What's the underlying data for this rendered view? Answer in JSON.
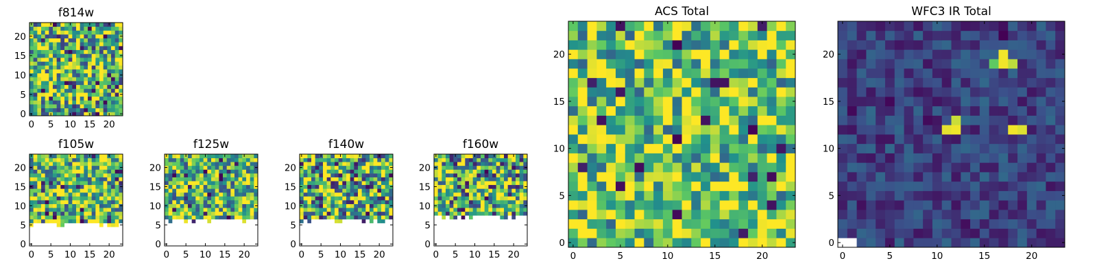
{
  "colors": {
    "colormap": "viridis",
    "viridis_stops": [
      "#440154",
      "#3b528b",
      "#21918c",
      "#5ec962",
      "#fde725"
    ],
    "masked": "#ffffff",
    "frame": "#000000"
  },
  "chart_data": [
    {
      "type": "heatmap",
      "title": "f814w",
      "grid_size": 24,
      "xlim": [
        -0.5,
        23.5
      ],
      "ylim": [
        -0.5,
        23.5
      ],
      "xticks": [
        0,
        5,
        10,
        15,
        20
      ],
      "yticks": [
        0,
        5,
        10,
        15,
        20
      ],
      "xtick_labels": [
        "0",
        "5",
        "10",
        "15",
        "20"
      ],
      "ytick_labels": [
        "0",
        "5",
        "10",
        "15",
        "20"
      ],
      "colormap": "viridis",
      "value_range": [
        0,
        1
      ],
      "mean_value": 0.66,
      "variation": 0.5,
      "seed": 11,
      "masked_below_row": null,
      "bright_spots": []
    },
    {
      "type": "heatmap",
      "title": "f105w",
      "grid_size": 24,
      "xlim": [
        -0.5,
        23.5
      ],
      "ylim": [
        -0.5,
        23.5
      ],
      "xticks": [
        0,
        5,
        10,
        15,
        20
      ],
      "yticks": [
        0,
        5,
        10,
        15,
        20
      ],
      "xtick_labels": [
        "0",
        "5",
        "10",
        "15",
        "20"
      ],
      "ytick_labels": [
        "0",
        "5",
        "10",
        "15",
        "20"
      ],
      "colormap": "viridis",
      "value_range": [
        0,
        1
      ],
      "mean_value": 0.7,
      "variation": 0.5,
      "seed": 21,
      "masked_below_row": 6,
      "bright_spots": []
    },
    {
      "type": "heatmap",
      "title": "f125w",
      "grid_size": 24,
      "xlim": [
        -0.5,
        23.5
      ],
      "ylim": [
        -0.5,
        23.5
      ],
      "xticks": [
        0,
        5,
        10,
        15,
        20
      ],
      "yticks": [
        0,
        5,
        10,
        15,
        20
      ],
      "xtick_labels": [
        "0",
        "5",
        "10",
        "15",
        "20"
      ],
      "ytick_labels": [
        "0",
        "5",
        "10",
        "15",
        "20"
      ],
      "colormap": "viridis",
      "value_range": [
        0,
        1
      ],
      "mean_value": 0.68,
      "variation": 0.45,
      "seed": 31,
      "masked_below_row": 7,
      "bright_spots": []
    },
    {
      "type": "heatmap",
      "title": "f140w",
      "grid_size": 24,
      "xlim": [
        -0.5,
        23.5
      ],
      "ylim": [
        -0.5,
        23.5
      ],
      "xticks": [
        0,
        5,
        10,
        15,
        20
      ],
      "yticks": [
        0,
        5,
        10,
        15,
        20
      ],
      "xtick_labels": [
        "0",
        "5",
        "10",
        "15",
        "20"
      ],
      "ytick_labels": [
        "0",
        "5",
        "10",
        "15",
        "20"
      ],
      "colormap": "viridis",
      "value_range": [
        0,
        1
      ],
      "mean_value": 0.62,
      "variation": 0.55,
      "seed": 41,
      "masked_below_row": 7,
      "bright_spots": []
    },
    {
      "type": "heatmap",
      "title": "f160w",
      "grid_size": 24,
      "xlim": [
        -0.5,
        23.5
      ],
      "ylim": [
        -0.5,
        23.5
      ],
      "xticks": [
        0,
        5,
        10,
        15,
        20
      ],
      "yticks": [
        0,
        5,
        10,
        15,
        20
      ],
      "xtick_labels": [
        "0",
        "5",
        "10",
        "15",
        "20"
      ],
      "ytick_labels": [
        "0",
        "5",
        "10",
        "15",
        "20"
      ],
      "colormap": "viridis",
      "value_range": [
        0,
        1
      ],
      "mean_value": 0.64,
      "variation": 0.55,
      "seed": 51,
      "masked_below_row": 8,
      "bright_spots": []
    },
    {
      "type": "heatmap",
      "title": "ACS Total",
      "grid_size": 24,
      "xlim": [
        -0.5,
        23.5
      ],
      "ylim": [
        -0.5,
        23.5
      ],
      "xticks": [
        0,
        5,
        10,
        15,
        20
      ],
      "yticks": [
        0,
        5,
        10,
        15,
        20
      ],
      "xtick_labels": [
        "0",
        "5",
        "10",
        "15",
        "20"
      ],
      "ytick_labels": [
        "0",
        "5",
        "10",
        "15",
        "20"
      ],
      "colormap": "viridis",
      "value_range": [
        0,
        1
      ],
      "mean_value": 0.72,
      "variation": 0.4,
      "seed": 61,
      "masked_below_row": null,
      "bright_spots": []
    },
    {
      "type": "heatmap",
      "title": "WFC3 IR Total",
      "grid_size": 24,
      "xlim": [
        -0.5,
        23.5
      ],
      "ylim": [
        -0.5,
        23.5
      ],
      "xticks": [
        0,
        5,
        10,
        15,
        20
      ],
      "yticks": [
        0,
        5,
        10,
        15,
        20
      ],
      "xtick_labels": [
        "0",
        "5",
        "10",
        "15",
        "20"
      ],
      "ytick_labels": [
        "0",
        "5",
        "10",
        "15",
        "20"
      ],
      "colormap": "viridis",
      "value_range": [
        0,
        1
      ],
      "mean_value": 0.2,
      "variation": 0.14,
      "seed": 71,
      "masked_below_row": null,
      "masked_cells": [
        [
          0,
          0
        ],
        [
          1,
          0
        ]
      ],
      "bright_spots": [
        {
          "x": 17,
          "y": 19,
          "value": 0.98
        },
        {
          "x": 17,
          "y": 20,
          "value": 0.98
        },
        {
          "x": 16,
          "y": 19,
          "value": 0.75
        },
        {
          "x": 18,
          "y": 19,
          "value": 0.9
        },
        {
          "x": 12,
          "y": 12,
          "value": 0.98
        },
        {
          "x": 11,
          "y": 12,
          "value": 0.96
        },
        {
          "x": 12,
          "y": 13,
          "value": 0.92
        },
        {
          "x": 18,
          "y": 12,
          "value": 0.98
        },
        {
          "x": 19,
          "y": 12,
          "value": 0.95
        }
      ]
    }
  ]
}
